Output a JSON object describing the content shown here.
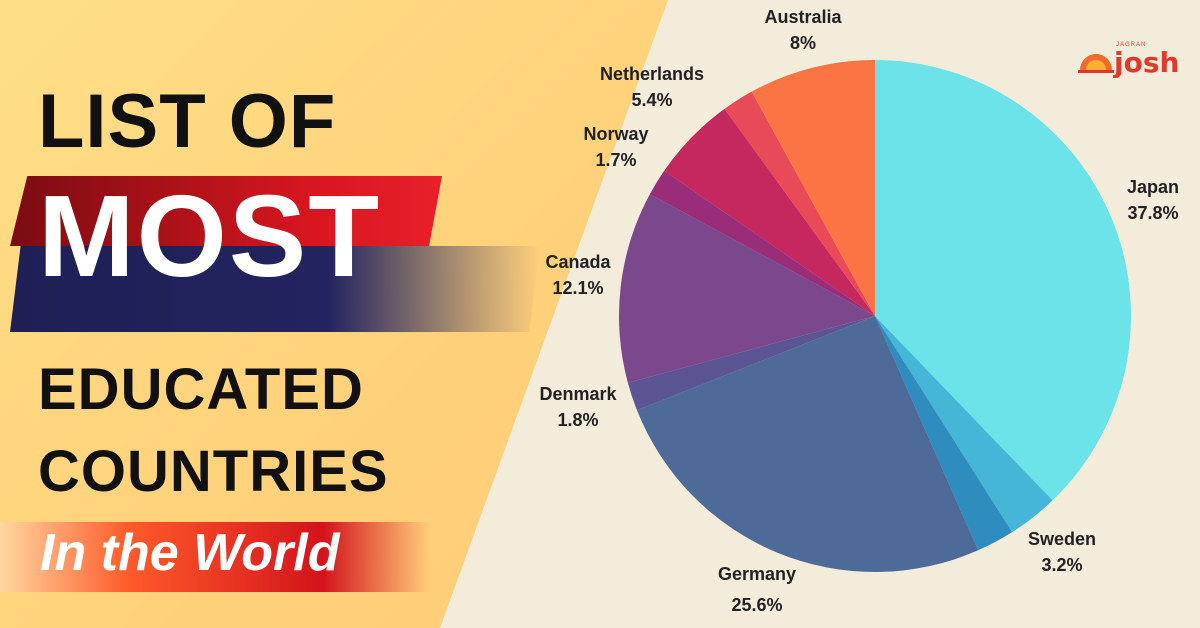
{
  "headline": {
    "line1": "LIST OF",
    "line2": "MOST",
    "line3": "EDUCATED",
    "line4": "COUNTRIES",
    "line5": "In the World"
  },
  "logo": {
    "text": "josh",
    "small_text": "JAGRAN"
  },
  "colors": {
    "background": "#f3ecdb",
    "left_panel": "#ffd07a",
    "red_band": "#d8161f",
    "navy_band": "#23235f"
  },
  "chart_data": {
    "type": "pie",
    "title": "",
    "start": "top, clockwise",
    "slices": [
      {
        "label": "Japan",
        "percent_label": "37.8%",
        "value": 37.8,
        "color": "#6be3e8"
      },
      {
        "label": "Sweden",
        "percent_label": "3.2%",
        "value": 3.2,
        "color": "#45b6d8"
      },
      {
        "label": "",
        "percent_label": "",
        "value": 2.4,
        "color": "#2f8cbf"
      },
      {
        "label": "Germany",
        "percent_label": "25.6%",
        "value": 25.6,
        "color": "#4e6a98"
      },
      {
        "label": "Denmark",
        "percent_label": "1.8%",
        "value": 1.8,
        "color": "#5b5693"
      },
      {
        "label": "Canada",
        "percent_label": "12.1%",
        "value": 12.1,
        "color": "#7b478d"
      },
      {
        "label": "Norway",
        "percent_label": "1.7%",
        "value": 1.7,
        "color": "#9a2d7a"
      },
      {
        "label": "Netherlands",
        "percent_label": "5.4%",
        "value": 5.4,
        "color": "#c4285e"
      },
      {
        "label": "",
        "percent_label": "",
        "value": 2.0,
        "color": "#e84a57"
      },
      {
        "label": "Australia",
        "percent_label": "8%",
        "value": 8.0,
        "color": "#fb7544"
      }
    ]
  }
}
